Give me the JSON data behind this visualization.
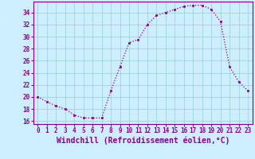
{
  "x": [
    0,
    1,
    2,
    3,
    4,
    5,
    6,
    7,
    8,
    9,
    10,
    11,
    12,
    13,
    14,
    15,
    16,
    17,
    18,
    19,
    20,
    21,
    22,
    23
  ],
  "y": [
    20,
    19.2,
    18.5,
    18,
    17,
    16.5,
    16.5,
    16.5,
    21,
    25,
    29,
    29.5,
    32,
    33.5,
    34,
    34.5,
    35,
    35.2,
    35.2,
    34.5,
    32.5,
    25,
    22.5,
    21
  ],
  "line_color": "#880088",
  "marker": "s",
  "marker_size": 2.0,
  "bg_color": "#cceeff",
  "grid_color": "#99cccc",
  "xlabel": "Windchill (Refroidissement éolien,°C)",
  "ylabel": "",
  "xlim": [
    -0.5,
    23.5
  ],
  "ylim": [
    15.5,
    35.8
  ],
  "yticks": [
    16,
    18,
    20,
    22,
    24,
    26,
    28,
    30,
    32,
    34
  ],
  "xticks": [
    0,
    1,
    2,
    3,
    4,
    5,
    6,
    7,
    8,
    9,
    10,
    11,
    12,
    13,
    14,
    15,
    16,
    17,
    18,
    19,
    20,
    21,
    22,
    23
  ],
  "tick_label_color": "#880088",
  "tick_label_fontsize": 5.5,
  "xlabel_fontsize": 7.0,
  "spine_color": "#880088",
  "linewidth": 0.9,
  "linestyle": ":"
}
